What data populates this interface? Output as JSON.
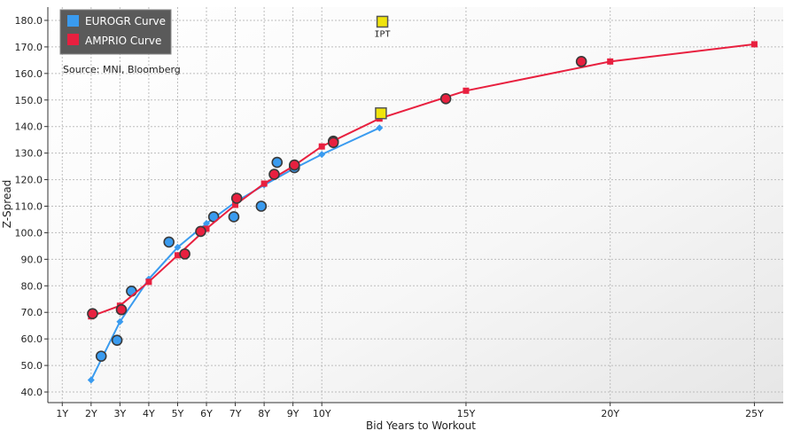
{
  "chart_data": {
    "type": "scatter",
    "xlabel": "Bid Years to Workout",
    "ylabel": "Z-Spread",
    "xlim": [
      0.5,
      26
    ],
    "ylim": [
      36,
      185
    ],
    "x_ticks": [
      {
        "value": 1,
        "label": "1Y"
      },
      {
        "value": 2,
        "label": "2Y"
      },
      {
        "value": 3,
        "label": "3Y"
      },
      {
        "value": 4,
        "label": "4Y"
      },
      {
        "value": 5,
        "label": "5Y"
      },
      {
        "value": 6,
        "label": "6Y"
      },
      {
        "value": 7,
        "label": "7Y"
      },
      {
        "value": 8,
        "label": "8Y"
      },
      {
        "value": 9,
        "label": "9Y"
      },
      {
        "value": 10,
        "label": "10Y"
      },
      {
        "value": 15,
        "label": "15Y"
      },
      {
        "value": 20,
        "label": "20Y"
      },
      {
        "value": 25,
        "label": "25Y"
      }
    ],
    "y_ticks": [
      40,
      50,
      60,
      70,
      80,
      90,
      100,
      110,
      120,
      130,
      140,
      150,
      160,
      170,
      180
    ],
    "y_tick_format": "0.0",
    "grid": true,
    "legend_position": "top-left",
    "source_note": "Source: MNI, Bloomberg",
    "series": [
      {
        "name": "EUROGR Curve",
        "color": "#3a9bef",
        "curve": [
          [
            2,
            44.5
          ],
          [
            3,
            66.5
          ],
          [
            4,
            82.5
          ],
          [
            5,
            94.5
          ],
          [
            6,
            103.5
          ],
          [
            7,
            111.5
          ],
          [
            8,
            118
          ],
          [
            9,
            124
          ],
          [
            10,
            129.5
          ],
          [
            12,
            139.5
          ]
        ],
        "bonds": [
          [
            2.35,
            53.5
          ],
          [
            2.9,
            59.5
          ],
          [
            3.4,
            78
          ],
          [
            4.7,
            96.5
          ],
          [
            6.25,
            106
          ],
          [
            6.95,
            106
          ],
          [
            7.9,
            110
          ],
          [
            8.45,
            126.5
          ],
          [
            9.05,
            124.5
          ],
          [
            10.4,
            134.5
          ]
        ]
      },
      {
        "name": "AMPRIO Curve",
        "color": "#e8203f",
        "curve": [
          [
            2,
            68.5
          ],
          [
            3,
            72.5
          ],
          [
            4,
            81.5
          ],
          [
            5,
            91.5
          ],
          [
            6,
            101.5
          ],
          [
            7,
            110.5
          ],
          [
            8,
            118.5
          ],
          [
            9,
            125
          ],
          [
            10,
            132.5
          ],
          [
            12,
            143
          ],
          [
            15,
            153.5
          ],
          [
            20,
            164.5
          ],
          [
            25,
            171
          ]
        ],
        "bonds": [
          [
            2.05,
            69.5
          ],
          [
            3.05,
            71
          ],
          [
            5.25,
            92
          ],
          [
            5.8,
            100.5
          ],
          [
            7.05,
            113
          ],
          [
            8.35,
            122
          ],
          [
            9.05,
            125.5
          ],
          [
            10.4,
            134
          ],
          [
            14.3,
            150.5
          ],
          [
            19.0,
            164.5
          ]
        ]
      }
    ],
    "annotations": [
      {
        "label": "IPT",
        "x": 12.1,
        "y": 179.5,
        "color": "#f0e40c"
      },
      {
        "label": "",
        "x": 12.05,
        "y": 145,
        "color": "#f0e40c"
      }
    ]
  }
}
